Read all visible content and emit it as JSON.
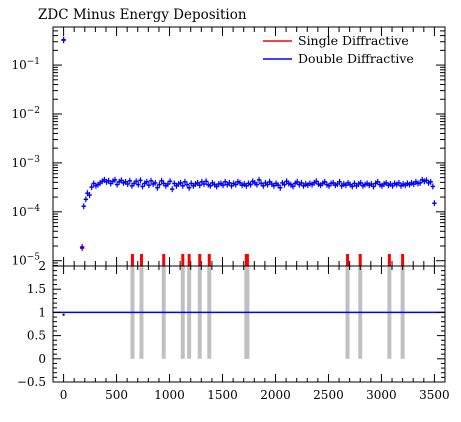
{
  "chart_data": [
    {
      "type": "scatter",
      "title": "ZDC Minus Energy Deposition",
      "xlabel": "",
      "ylabel": "",
      "xlim": [
        -100,
        3600
      ],
      "ylim": [
        7.8e-06,
        0.6
      ],
      "yscale": "log",
      "x_ticks": [
        0,
        500,
        1000,
        1500,
        2000,
        2500,
        3000,
        3500
      ],
      "y_ticks": [
        {
          "value": 1e-05,
          "base": "10",
          "exp": "−5"
        },
        {
          "value": 0.0001,
          "base": "10",
          "exp": "−4"
        },
        {
          "value": 0.001,
          "base": "10",
          "exp": "−3"
        },
        {
          "value": 0.01,
          "base": "10",
          "exp": "−2"
        },
        {
          "value": 0.1,
          "base": "10",
          "exp": "−1"
        }
      ],
      "legend": {
        "position": "top-right"
      },
      "series": [
        {
          "name": "Single Diffractive",
          "color": "#ff0000",
          "points": [
            [
              0,
              0.32
            ],
            [
              175,
              1.8e-05
            ]
          ]
        },
        {
          "name": "Double Diffractive",
          "color": "#0000ff",
          "points": [
            [
              0,
              0.33
            ],
            [
              175,
              1.9e-05
            ],
            [
              190,
              0.00013
            ],
            [
              210,
              0.00018
            ],
            [
              225,
              0.00024
            ],
            [
              245,
              0.00022
            ],
            [
              265,
              0.00032
            ],
            [
              285,
              0.00038
            ],
            [
              305,
              0.00034
            ],
            [
              325,
              0.00036
            ],
            [
              345,
              0.00039
            ],
            [
              365,
              0.00042
            ],
            [
              385,
              0.00045
            ],
            [
              405,
              0.00041
            ],
            [
              425,
              0.00043
            ],
            [
              445,
              0.00038
            ],
            [
              465,
              0.00042
            ],
            [
              485,
              0.00045
            ],
            [
              505,
              0.00036
            ],
            [
              525,
              0.00041
            ],
            [
              545,
              0.00044
            ],
            [
              565,
              0.00039
            ],
            [
              585,
              0.00041
            ],
            [
              605,
              0.00037
            ],
            [
              625,
              0.00043
            ],
            [
              645,
              0.00034
            ],
            [
              665,
              0.00038
            ],
            [
              685,
              0.00042
            ],
            [
              705,
              0.00036
            ],
            [
              725,
              0.00044
            ],
            [
              745,
              0.00033
            ],
            [
              765,
              0.00038
            ],
            [
              785,
              0.00041
            ],
            [
              805,
              0.00035
            ],
            [
              825,
              0.00043
            ],
            [
              845,
              0.00037
            ],
            [
              865,
              0.00039
            ],
            [
              885,
              0.00031
            ],
            [
              905,
              0.00036
            ],
            [
              925,
              0.00043
            ],
            [
              945,
              0.00038
            ],
            [
              965,
              0.00034
            ],
            [
              985,
              0.00037
            ],
            [
              1005,
              0.00042
            ],
            [
              1025,
              0.00029
            ],
            [
              1045,
              0.00038
            ],
            [
              1065,
              0.00034
            ],
            [
              1085,
              0.00037
            ],
            [
              1105,
              0.00039
            ],
            [
              1125,
              0.00034
            ],
            [
              1145,
              0.00041
            ],
            [
              1165,
              0.00036
            ],
            [
              1185,
              0.00031
            ],
            [
              1205,
              0.00038
            ],
            [
              1225,
              0.00034
            ],
            [
              1245,
              0.00037
            ],
            [
              1265,
              0.00039
            ],
            [
              1285,
              0.00035
            ],
            [
              1305,
              0.00041
            ],
            [
              1325,
              0.00037
            ],
            [
              1345,
              0.00042
            ],
            [
              1365,
              0.00036
            ],
            [
              1385,
              0.00034
            ],
            [
              1405,
              0.00039
            ],
            [
              1425,
              0.00036
            ],
            [
              1445,
              0.00033
            ],
            [
              1465,
              0.00037
            ],
            [
              1485,
              0.00038
            ],
            [
              1505,
              0.00035
            ],
            [
              1525,
              0.00041
            ],
            [
              1545,
              0.00036
            ],
            [
              1565,
              0.00039
            ],
            [
              1585,
              0.00034
            ],
            [
              1605,
              0.00038
            ],
            [
              1625,
              0.00036
            ],
            [
              1645,
              0.00041
            ],
            [
              1665,
              0.00039
            ],
            [
              1685,
              0.00035
            ],
            [
              1705,
              0.00037
            ],
            [
              1725,
              0.00034
            ],
            [
              1745,
              0.00038
            ],
            [
              1765,
              0.00036
            ],
            [
              1785,
              0.00042
            ],
            [
              1805,
              0.00039
            ],
            [
              1825,
              0.00036
            ],
            [
              1845,
              0.00045
            ],
            [
              1865,
              0.00038
            ],
            [
              1885,
              0.00034
            ],
            [
              1905,
              0.00039
            ],
            [
              1925,
              0.00036
            ],
            [
              1945,
              0.00041
            ],
            [
              1965,
              0.00037
            ],
            [
              1985,
              0.00034
            ],
            [
              2005,
              0.00038
            ],
            [
              2025,
              0.00035
            ],
            [
              2045,
              0.00031
            ],
            [
              2065,
              0.00039
            ],
            [
              2085,
              0.00036
            ],
            [
              2105,
              0.00042
            ],
            [
              2125,
              0.00038
            ],
            [
              2145,
              0.00036
            ],
            [
              2165,
              0.00033
            ],
            [
              2185,
              0.00038
            ],
            [
              2205,
              0.00041
            ],
            [
              2225,
              0.00036
            ],
            [
              2245,
              0.00039
            ],
            [
              2265,
              0.00034
            ],
            [
              2285,
              0.00037
            ],
            [
              2305,
              0.00035
            ],
            [
              2325,
              0.00038
            ],
            [
              2345,
              0.00036
            ],
            [
              2365,
              0.00039
            ],
            [
              2385,
              0.00042
            ],
            [
              2405,
              0.00037
            ],
            [
              2425,
              0.00035
            ],
            [
              2445,
              0.00038
            ],
            [
              2465,
              0.00041
            ],
            [
              2485,
              0.00036
            ],
            [
              2505,
              0.00034
            ],
            [
              2525,
              0.00038
            ],
            [
              2545,
              0.00039
            ],
            [
              2565,
              0.00035
            ],
            [
              2585,
              0.00037
            ],
            [
              2605,
              0.00041
            ],
            [
              2625,
              0.00034
            ],
            [
              2645,
              0.00037
            ],
            [
              2665,
              0.00035
            ],
            [
              2685,
              0.00039
            ],
            [
              2705,
              0.00036
            ],
            [
              2725,
              0.00033
            ],
            [
              2745,
              0.00038
            ],
            [
              2765,
              0.00034
            ],
            [
              2785,
              0.00037
            ],
            [
              2805,
              0.00039
            ],
            [
              2825,
              0.00034
            ],
            [
              2845,
              0.00036
            ],
            [
              2865,
              0.00038
            ],
            [
              2885,
              0.00035
            ],
            [
              2905,
              0.00037
            ],
            [
              2925,
              0.00033
            ],
            [
              2945,
              0.00038
            ],
            [
              2965,
              0.00041
            ],
            [
              2985,
              0.00036
            ],
            [
              3005,
              0.00034
            ],
            [
              3025,
              0.00037
            ],
            [
              3045,
              0.00039
            ],
            [
              3065,
              0.00035
            ],
            [
              3085,
              0.00037
            ],
            [
              3105,
              0.00034
            ],
            [
              3125,
              0.00038
            ],
            [
              3145,
              0.00036
            ],
            [
              3165,
              0.00039
            ],
            [
              3185,
              0.00034
            ],
            [
              3205,
              0.00037
            ],
            [
              3225,
              0.00035
            ],
            [
              3245,
              0.00038
            ],
            [
              3265,
              0.00036
            ],
            [
              3285,
              0.00039
            ],
            [
              3305,
              0.00037
            ],
            [
              3325,
              0.00041
            ],
            [
              3345,
              0.00038
            ],
            [
              3365,
              0.00039
            ],
            [
              3385,
              0.00045
            ],
            [
              3405,
              0.00042
            ],
            [
              3425,
              0.00044
            ],
            [
              3445,
              0.00039
            ],
            [
              3465,
              0.00041
            ],
            [
              3485,
              0.00033
            ],
            [
              3500,
              0.00015
            ]
          ]
        }
      ]
    },
    {
      "type": "bar",
      "title": "",
      "xlabel": "",
      "ylabel": "",
      "xlim": [
        -100,
        3600
      ],
      "ylim": [
        -0.5,
        2
      ],
      "x_ticks": [
        0,
        500,
        1000,
        1500,
        2000,
        2500,
        3000,
        3500
      ],
      "y_ticks": [
        -0.5,
        0,
        0.5,
        1,
        1.5,
        2
      ],
      "ratio_line": 1,
      "ratio_point": [
        0,
        0.95
      ],
      "zero_bins": [
        650,
        735,
        945,
        1125,
        1185,
        1285,
        1375,
        1725,
        1735,
        2680,
        2800,
        3075,
        3200
      ],
      "bin_width": 14
    }
  ]
}
